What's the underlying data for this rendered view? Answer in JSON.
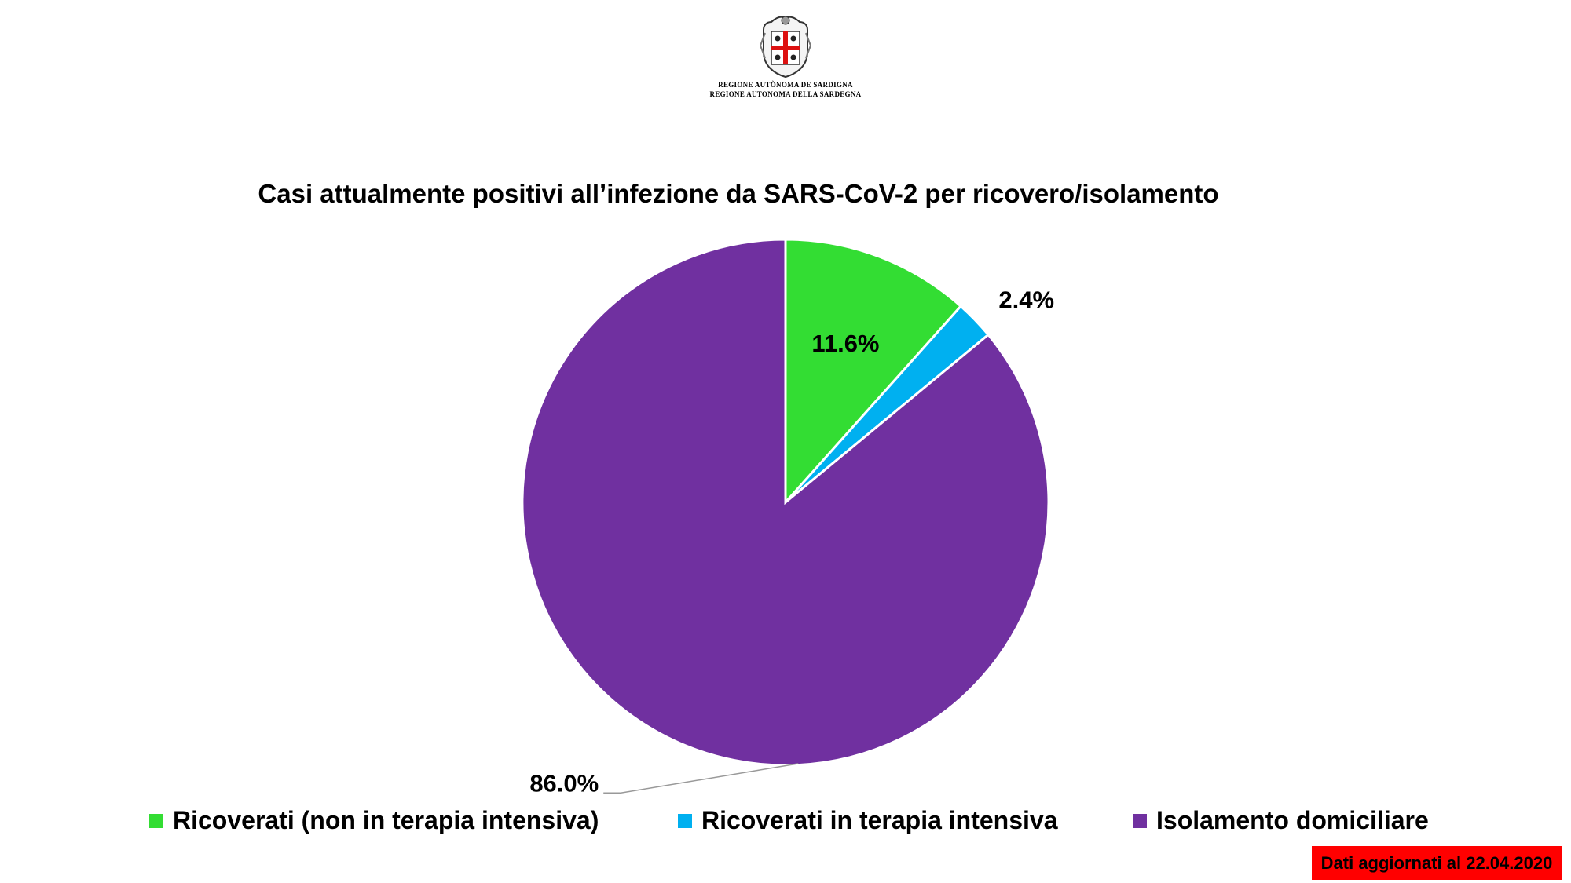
{
  "header": {
    "logo_line_1": "REGIONE AUTÒNOMA DE SARDIGNA",
    "logo_line_2": "REGIONE AUTONOMA DELLA SARDEGNA"
  },
  "chart_data": {
    "type": "pie",
    "title": "Casi attualmente positivi all’infezione da SARS-CoV-2 per ricovero/isolamento",
    "categories": [
      "Ricoverati (non in terapia intensiva)",
      "Ricoverati in terapia intensiva",
      "Isolamento domiciliare"
    ],
    "values": [
      11.6,
      2.4,
      86.0
    ],
    "data_labels": [
      "11.6%",
      "2.4%",
      "86.0%"
    ],
    "colors": [
      "#33dd33",
      "#00b0f0",
      "#7030a0"
    ],
    "start_angle": "12 o'clock, clockwise",
    "legend": "bottom"
  },
  "footer": {
    "update_note": "Dati aggiornati al 22.04.2020"
  }
}
